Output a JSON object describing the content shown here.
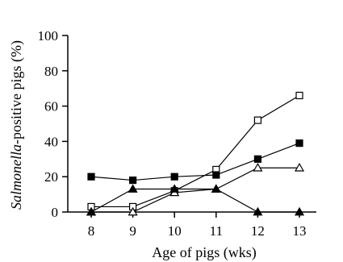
{
  "chart_data": {
    "type": "line",
    "xlabel": "Age of pigs (wks)",
    "ylabel_italic": "Salmonella",
    "ylabel_rest": "-positive pigs (%)",
    "x": [
      8,
      9,
      10,
      11,
      12,
      13
    ],
    "xlim": [
      8,
      13
    ],
    "ylim": [
      0,
      100
    ],
    "yticks": [
      0,
      20,
      40,
      60,
      80,
      100
    ],
    "grid": false,
    "series": [
      {
        "marker": "open-square",
        "values": [
          3,
          3,
          12,
          24,
          52,
          66
        ]
      },
      {
        "marker": "filled-square",
        "values": [
          20,
          18,
          20,
          21,
          30,
          39
        ]
      },
      {
        "marker": "open-triangle",
        "values": [
          0,
          0,
          11,
          13,
          25,
          25
        ]
      },
      {
        "marker": "filled-triangle",
        "values": [
          0,
          13,
          13,
          13,
          0,
          0
        ]
      }
    ]
  }
}
